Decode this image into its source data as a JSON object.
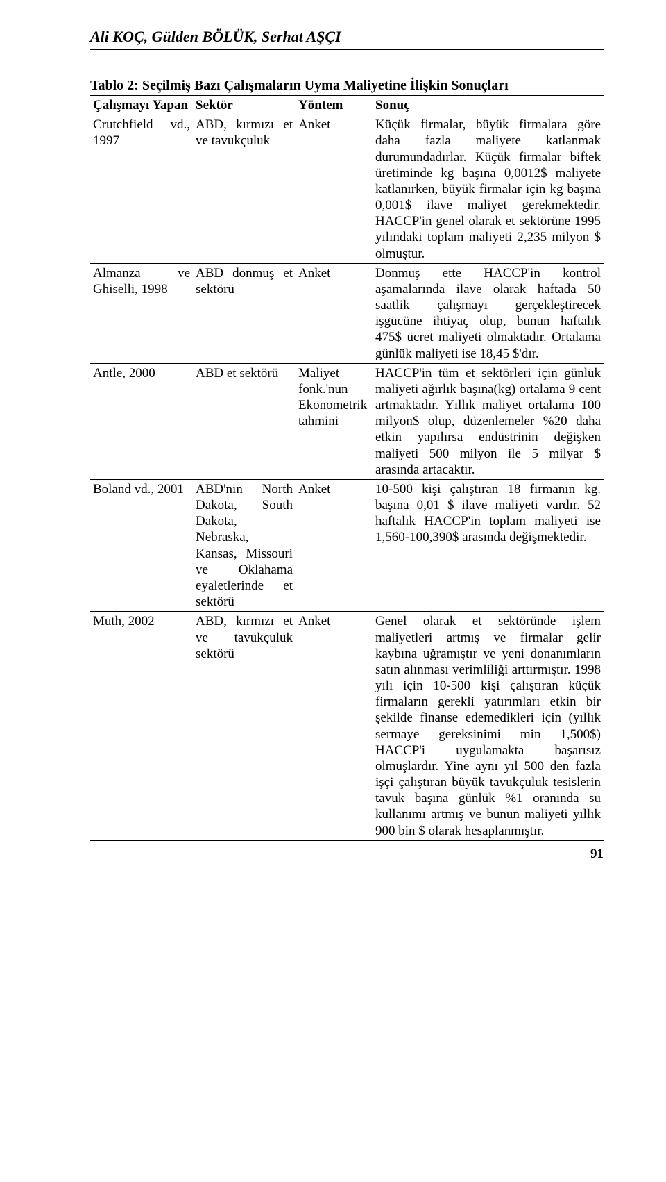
{
  "header": {
    "authors": "Ali KOÇ, Gülden BÖLÜK, Serhat AŞÇI"
  },
  "table": {
    "title": "Tablo 2: Seçilmiş Bazı Çalışmaların Uyma Maliyetine İlişkin Sonuçları",
    "columns": {
      "c0": "Çalışmayı Yapan",
      "c1": "Sektör",
      "c2": "Yöntem",
      "c3": "Sonuç"
    },
    "rows": [
      {
        "c0": "Crutchfield vd., 1997",
        "c1": "ABD, kırmızı et ve tavukçuluk",
        "c2": "Anket",
        "c3": "Küçük firmalar, büyük firmalara göre daha fazla maliyete katlanmak durumundadırlar. Küçük firmalar biftek üretiminde kg başına 0,0012$ maliyete katlanırken, büyük firmalar için kg başına 0,001$ ilave maliyet gerekmektedir. HACCP'in genel olarak et sektörüne 1995 yılındaki toplam maliyeti 2,235 milyon $ olmuştur."
      },
      {
        "c0": "Almanza ve Ghiselli, 1998",
        "c1": "ABD donmuş et sektörü",
        "c2": "Anket",
        "c3": "Donmuş ette HACCP'in kontrol aşamalarında ilave olarak haftada 50 saatlik çalışmayı gerçekleştirecek işgücüne ihtiyaç olup, bunun haftalık 475$ ücret maliyeti olmaktadır. Ortalama günlük maliyeti ise 18,45 $'dır."
      },
      {
        "c0": "Antle, 2000",
        "c1": "ABD et sektörü",
        "c2": "Maliyet fonk.'nun Ekonometrik tahmini",
        "c3": "HACCP'in tüm et sektörleri için günlük maliyeti ağırlık başına(kg) ortalama 9 cent artmaktadır. Yıllık maliyet ortalama 100 milyon$ olup, düzenlemeler %20 daha etkin yapılırsa endüstrinin değişken maliyeti 500 milyon ile 5 milyar $ arasında artacaktır."
      },
      {
        "c0": "Boland vd., 2001",
        "c1": "ABD'nin North Dakota, South Dakota, Nebraska, Kansas, Missouri ve Oklahama eyaletlerinde et sektörü",
        "c2": "Anket",
        "c3": "10-500 kişi çalıştıran 18 firmanın kg. başına 0,01 $ ilave maliyeti vardır. 52 haftalık HACCP'in toplam maliyeti ise 1,560-100,390$ arasında değişmektedir."
      },
      {
        "c0": "Muth, 2002",
        "c1": "ABD, kırmızı et ve tavukçuluk sektörü",
        "c2": "Anket",
        "c3": "Genel olarak et sektöründe işlem maliyetleri artmış ve firmalar gelir kaybına uğramıştır ve yeni donanımların satın alınması verimliliği arttırmıştır. 1998 yılı için 10-500 kişi çalıştıran küçük firmaların gerekli yatırımları etkin bir şekilde finanse edemedikleri için (yıllık sermaye gereksinimi min 1,500$) HACCP'i uygulamakta başarısız olmuşlardır. Yine aynı yıl 500 den fazla işçi çalıştıran büyük tavukçuluk tesislerin tavuk başına günlük %1 oranında su kullanımı artmış ve bunun maliyeti yıllık 900 bin $ olarak hesaplanmıştır."
      }
    ]
  },
  "pageNumber": "91"
}
